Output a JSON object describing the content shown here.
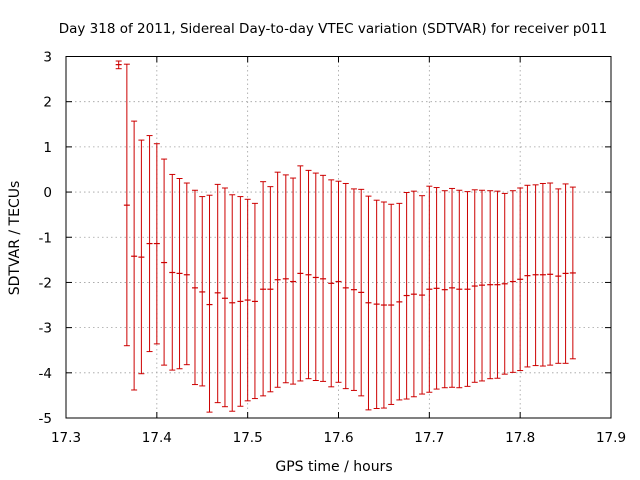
{
  "chart_data": {
    "type": "errorbar",
    "title": "Day 318 of 2011, Sidereal Day-to-day VTEC variation (SDTVAR) for receiver p011",
    "xlabel": "GPS time / hours",
    "ylabel": "SDTVAR / TECUs",
    "xlim": [
      17.3,
      17.9
    ],
    "ylim": [
      -5,
      3
    ],
    "xticks": [
      "17.3",
      "17.4",
      "17.5",
      "17.6",
      "17.7",
      "17.8",
      "17.9"
    ],
    "yticks": [
      "-5",
      "-4",
      "-3",
      "-2",
      "-1",
      "0",
      "1",
      "2",
      "3"
    ],
    "grid": true,
    "series": [
      {
        "color": "#cc0000",
        "points": [
          {
            "x": 17.358,
            "y": 2.82,
            "low": 2.73,
            "high": 2.9
          },
          {
            "x": 17.367,
            "y": -0.29,
            "low": -3.4,
            "high": 2.83
          },
          {
            "x": 17.375,
            "y": -1.42,
            "low": -4.38,
            "high": 1.57
          },
          {
            "x": 17.383,
            "y": -1.44,
            "low": -4.02,
            "high": 1.15
          },
          {
            "x": 17.392,
            "y": -1.14,
            "low": -3.53,
            "high": 1.25
          },
          {
            "x": 17.4,
            "y": -1.14,
            "low": -3.36,
            "high": 1.07
          },
          {
            "x": 17.408,
            "y": -1.56,
            "low": -3.83,
            "high": 0.73
          },
          {
            "x": 17.417,
            "y": -1.78,
            "low": -3.94,
            "high": 0.39
          },
          {
            "x": 17.425,
            "y": -1.8,
            "low": -3.91,
            "high": 0.3
          },
          {
            "x": 17.433,
            "y": -1.83,
            "low": -3.82,
            "high": 0.2
          },
          {
            "x": 17.442,
            "y": -2.12,
            "low": -4.26,
            "high": 0.04
          },
          {
            "x": 17.45,
            "y": -2.21,
            "low": -4.29,
            "high": -0.1
          },
          {
            "x": 17.458,
            "y": -2.49,
            "low": -4.87,
            "high": -0.07
          },
          {
            "x": 17.467,
            "y": -2.23,
            "low": -4.66,
            "high": 0.17
          },
          {
            "x": 17.475,
            "y": -2.35,
            "low": -4.75,
            "high": 0.09
          },
          {
            "x": 17.483,
            "y": -2.45,
            "low": -4.85,
            "high": -0.06
          },
          {
            "x": 17.492,
            "y": -2.42,
            "low": -4.74,
            "high": -0.1
          },
          {
            "x": 17.5,
            "y": -2.39,
            "low": -4.62,
            "high": -0.16
          },
          {
            "x": 17.508,
            "y": -2.42,
            "low": -4.57,
            "high": -0.25
          },
          {
            "x": 17.517,
            "y": -2.15,
            "low": -4.51,
            "high": 0.23
          },
          {
            "x": 17.525,
            "y": -2.15,
            "low": -4.42,
            "high": 0.12
          },
          {
            "x": 17.533,
            "y": -1.94,
            "low": -4.32,
            "high": 0.44
          },
          {
            "x": 17.542,
            "y": -1.92,
            "low": -4.22,
            "high": 0.38
          },
          {
            "x": 17.55,
            "y": -1.98,
            "low": -4.25,
            "high": 0.31
          },
          {
            "x": 17.558,
            "y": -1.8,
            "low": -4.18,
            "high": 0.58
          },
          {
            "x": 17.567,
            "y": -1.83,
            "low": -4.13,
            "high": 0.48
          },
          {
            "x": 17.575,
            "y": -1.89,
            "low": -4.17,
            "high": 0.42
          },
          {
            "x": 17.583,
            "y": -1.92,
            "low": -4.19,
            "high": 0.37
          },
          {
            "x": 17.592,
            "y": -2.02,
            "low": -4.31,
            "high": 0.27
          },
          {
            "x": 17.6,
            "y": -1.98,
            "low": -4.21,
            "high": 0.24
          },
          {
            "x": 17.608,
            "y": -2.12,
            "low": -4.35,
            "high": 0.19
          },
          {
            "x": 17.617,
            "y": -2.16,
            "low": -4.39,
            "high": 0.07
          },
          {
            "x": 17.625,
            "y": -2.22,
            "low": -4.51,
            "high": 0.06
          },
          {
            "x": 17.633,
            "y": -2.45,
            "low": -4.82,
            "high": -0.09
          },
          {
            "x": 17.642,
            "y": -2.48,
            "low": -4.79,
            "high": -0.18
          },
          {
            "x": 17.65,
            "y": -2.5,
            "low": -4.78,
            "high": -0.22
          },
          {
            "x": 17.658,
            "y": -2.5,
            "low": -4.7,
            "high": -0.27
          },
          {
            "x": 17.667,
            "y": -2.43,
            "low": -4.6,
            "high": -0.25
          },
          {
            "x": 17.675,
            "y": -2.29,
            "low": -4.58,
            "high": -0.01
          },
          {
            "x": 17.683,
            "y": -2.26,
            "low": -4.53,
            "high": 0.02
          },
          {
            "x": 17.692,
            "y": -2.28,
            "low": -4.47,
            "high": -0.08
          },
          {
            "x": 17.7,
            "y": -2.15,
            "low": -4.43,
            "high": 0.13
          },
          {
            "x": 17.708,
            "y": -2.13,
            "low": -4.36,
            "high": 0.1
          },
          {
            "x": 17.717,
            "y": -2.16,
            "low": -4.33,
            "high": 0.03
          },
          {
            "x": 17.725,
            "y": -2.12,
            "low": -4.32,
            "high": 0.08
          },
          {
            "x": 17.733,
            "y": -2.15,
            "low": -4.33,
            "high": 0.04
          },
          {
            "x": 17.742,
            "y": -2.15,
            "low": -4.3,
            "high": 0.01
          },
          {
            "x": 17.75,
            "y": -2.08,
            "low": -4.21,
            "high": 0.05
          },
          {
            "x": 17.758,
            "y": -2.06,
            "low": -4.18,
            "high": 0.04
          },
          {
            "x": 17.767,
            "y": -2.05,
            "low": -4.13,
            "high": 0.03
          },
          {
            "x": 17.775,
            "y": -2.05,
            "low": -4.12,
            "high": 0.02
          },
          {
            "x": 17.783,
            "y": -2.03,
            "low": -4.03,
            "high": -0.03
          },
          {
            "x": 17.792,
            "y": -1.98,
            "low": -3.99,
            "high": 0.03
          },
          {
            "x": 17.8,
            "y": -1.93,
            "low": -3.95,
            "high": 0.09
          },
          {
            "x": 17.808,
            "y": -1.85,
            "low": -3.87,
            "high": 0.15
          },
          {
            "x": 17.817,
            "y": -1.83,
            "low": -3.84,
            "high": 0.16
          },
          {
            "x": 17.825,
            "y": -1.83,
            "low": -3.85,
            "high": 0.19
          },
          {
            "x": 17.833,
            "y": -1.82,
            "low": -3.83,
            "high": 0.2
          },
          {
            "x": 17.842,
            "y": -1.86,
            "low": -3.79,
            "high": 0.07
          },
          {
            "x": 17.85,
            "y": -1.8,
            "low": -3.79,
            "high": 0.18
          },
          {
            "x": 17.858,
            "y": -1.79,
            "low": -3.69,
            "high": 0.11
          }
        ]
      }
    ]
  }
}
